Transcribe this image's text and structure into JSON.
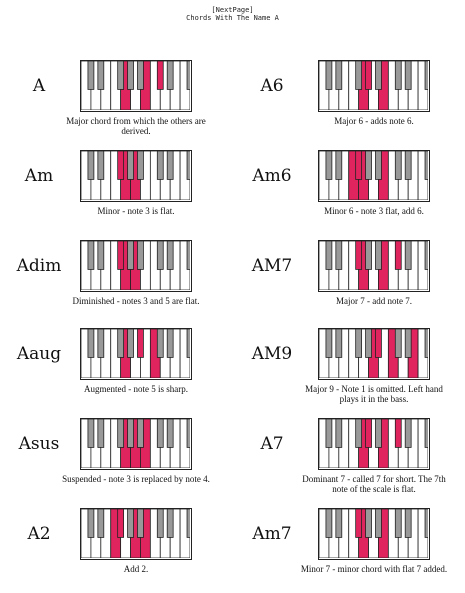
{
  "header": {
    "nav_label": "[NextPage]",
    "title": "Chords With The Name A"
  },
  "colors": {
    "highlight": "#e0245e",
    "black_key": "#999999",
    "white_key": "#ffffff"
  },
  "chords": [
    {
      "name": "A",
      "description": "Major chord from which the others are derived.",
      "highlighted": [
        "w5",
        "w7",
        "b6"
      ]
    },
    {
      "name": "A6",
      "description": "Major 6 - adds note 6.",
      "highlighted": [
        "w5",
        "w7",
        "b4"
      ]
    },
    {
      "name": "Am",
      "description": "Minor - note 3 is flat.",
      "highlighted": [
        "w5",
        "w6",
        "b3"
      ]
    },
    {
      "name": "Am6",
      "description": "Minor 6 - note 3 flat, add 6.",
      "highlighted": [
        "w4",
        "w5",
        "w7",
        "b3"
      ]
    },
    {
      "name": "Adim",
      "description": "Diminished - notes 3 and 5 are flat.",
      "highlighted": [
        "w5",
        "w6",
        "b3"
      ]
    },
    {
      "name": "AM7",
      "description": "Major 7 - add note 7.",
      "highlighted": [
        "w5",
        "w7",
        "b3",
        "b6"
      ]
    },
    {
      "name": "Aaug",
      "description": "Augmented - note 5 is sharp.",
      "highlighted": [
        "w5",
        "w8",
        "b5"
      ]
    },
    {
      "name": "AM9",
      "description": "Major 9 - Note 1 is omitted. Left hand plays it in the bass.",
      "highlighted": [
        "w6",
        "w8",
        "w10",
        "b5"
      ]
    },
    {
      "name": "Asus",
      "description": "Suspended - note 3 is replaced by note 4.",
      "highlighted": [
        "w5",
        "w6",
        "w7"
      ]
    },
    {
      "name": "A7",
      "description": "Dominant 7 - called 7 for short. The 7th note of the scale is flat.",
      "highlighted": [
        "w5",
        "w7",
        "b4",
        "b6"
      ]
    },
    {
      "name": "A2",
      "description": "Add 2.",
      "highlighted": [
        "w4",
        "w6",
        "w7",
        "b3"
      ]
    },
    {
      "name": "Am7",
      "description": "Minor 7 - minor chord with flat 7 added.",
      "highlighted": [
        "w5",
        "w7",
        "b3"
      ]
    }
  ]
}
